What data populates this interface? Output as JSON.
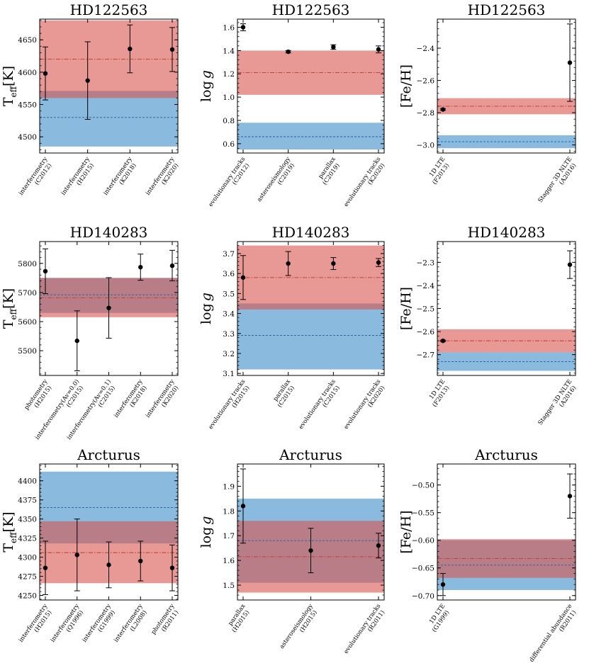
{
  "chart_data": [
    {
      "type": "errorbar",
      "title": "HD122563",
      "ylabel_main": "T",
      "ylabel_sub": "eff",
      "ylabel_unit": "[K]",
      "ylim": [
        4475,
        4682
      ],
      "yticks": [
        4500,
        4550,
        4600,
        4650
      ],
      "categories": [
        [
          "interferometry",
          "(C2012)"
        ],
        [
          "interferometry",
          "(H2015)"
        ],
        [
          "interferometry",
          "(K2018)"
        ],
        [
          "interferometry",
          "(K2020)"
        ]
      ],
      "points": [
        {
          "value": 4598,
          "lo": 4557,
          "hi": 4639
        },
        {
          "value": 4587,
          "lo": 4527,
          "hi": 4647
        },
        {
          "value": 4636,
          "lo": 4599,
          "hi": 4673
        },
        {
          "value": 4635,
          "lo": 4601,
          "hi": 4669
        }
      ],
      "red_band": {
        "center": 4620,
        "lo": 4560,
        "hi": 4680
      },
      "blue_band": {
        "center": 4530,
        "lo": 4485,
        "hi": 4571
      }
    },
    {
      "type": "errorbar",
      "title": "HD122563",
      "ylabel_main": "log",
      "ylabel_sub": "",
      "ylabel_unit": "g",
      "ylim": [
        0.52,
        1.67
      ],
      "yticks": [
        0.6,
        0.8,
        1.0,
        1.2,
        1.4,
        1.6
      ],
      "categories": [
        [
          "evolutionary tracks",
          "(C2012)"
        ],
        [
          "asteroseismology",
          "(C2019)"
        ],
        [
          "parallax",
          "(C2019)"
        ],
        [
          "evolutionary tracks",
          "(K2020)"
        ]
      ],
      "points": [
        {
          "value": 1.6,
          "lo": 1.57,
          "hi": 1.63
        },
        {
          "value": 1.39,
          "lo": 1.38,
          "hi": 1.4
        },
        {
          "value": 1.43,
          "lo": 1.41,
          "hi": 1.45
        },
        {
          "value": 1.41,
          "lo": 1.38,
          "hi": 1.44
        }
      ],
      "red_band": {
        "center": 1.21,
        "lo": 1.02,
        "hi": 1.4
      },
      "blue_band": {
        "center": 0.66,
        "lo": 0.55,
        "hi": 0.78
      }
    },
    {
      "type": "errorbar",
      "title": "HD122563",
      "ylabel_main": "[Fe/H]",
      "ylabel_sub": "",
      "ylabel_unit": "",
      "ylim": [
        -3.05,
        -2.22
      ],
      "yticks": [
        -3.0,
        -2.8,
        -2.6,
        -2.4
      ],
      "categories": [
        [
          "1D LTE",
          "(F2013)"
        ],
        [
          "Stagger 3D NLTE",
          "(A2016)"
        ]
      ],
      "points": [
        {
          "value": -2.78,
          "lo": -2.785,
          "hi": -2.775
        },
        {
          "value": -2.49,
          "lo": -2.73,
          "hi": -2.25
        }
      ],
      "red_band": {
        "center": -2.76,
        "lo": -2.81,
        "hi": -2.71
      },
      "blue_band": {
        "center": -2.98,
        "lo": -3.02,
        "hi": -2.94
      }
    },
    {
      "type": "errorbar",
      "title": "HD140283",
      "ylabel_main": "T",
      "ylabel_sub": "eff",
      "ylabel_unit": "[K]",
      "ylim": [
        5415,
        5875
      ],
      "yticks": [
        5500,
        5600,
        5700,
        5800
      ],
      "categories": [
        [
          "photometry",
          "(H2015)"
        ],
        [
          "interferometry(Av=0.0)",
          "(C2015)"
        ],
        [
          "interferometry(Av=0.1)",
          "(C2015)"
        ],
        [
          "interferometry",
          "(K2018)"
        ],
        [
          "interferometry",
          "(K2020)"
        ]
      ],
      "points": [
        {
          "value": 5773,
          "lo": 5696,
          "hi": 5850
        },
        {
          "value": 5534,
          "lo": 5431,
          "hi": 5637
        },
        {
          "value": 5647,
          "lo": 5543,
          "hi": 5751
        },
        {
          "value": 5787,
          "lo": 5742,
          "hi": 5832
        },
        {
          "value": 5792,
          "lo": 5740,
          "hi": 5845
        }
      ],
      "red_band": {
        "center": 5682,
        "lo": 5615,
        "hi": 5750
      },
      "blue_band": {
        "center": 5692,
        "lo": 5630,
        "hi": 5750
      }
    },
    {
      "type": "errorbar",
      "title": "HD140283",
      "ylabel_main": "log",
      "ylabel_sub": "",
      "ylabel_unit": "g",
      "ylim": [
        3.09,
        3.76
      ],
      "yticks": [
        3.1,
        3.2,
        3.3,
        3.4,
        3.5,
        3.6,
        3.7
      ],
      "categories": [
        [
          "evolutionary tracks",
          "(H2015)"
        ],
        [
          "parallax",
          "(C2015)"
        ],
        [
          "evolutionary tracks",
          "(C2015)"
        ],
        [
          "evolutionary tracks",
          "(K2020)"
        ]
      ],
      "points": [
        {
          "value": 3.58,
          "lo": 3.47,
          "hi": 3.69
        },
        {
          "value": 3.65,
          "lo": 3.59,
          "hi": 3.71
        },
        {
          "value": 3.65,
          "lo": 3.62,
          "hi": 3.68
        },
        {
          "value": 3.655,
          "lo": 3.635,
          "hi": 3.675
        }
      ],
      "red_band": {
        "center": 3.58,
        "lo": 3.42,
        "hi": 3.74
      },
      "blue_band": {
        "center": 3.29,
        "lo": 3.12,
        "hi": 3.45
      }
    },
    {
      "type": "errorbar",
      "title": "HD140283",
      "ylabel_main": "[Fe/H]",
      "ylabel_sub": "",
      "ylabel_unit": "",
      "ylim": [
        -2.79,
        -2.21
      ],
      "yticks": [
        -2.7,
        -2.6,
        -2.5,
        -2.4,
        -2.3
      ],
      "categories": [
        [
          "1D LTE",
          "(F2013)"
        ],
        [
          "Stagger 3D NLTE",
          "(A2016)"
        ]
      ],
      "points": [
        {
          "value": -2.64,
          "lo": -2.643,
          "hi": -2.637
        },
        {
          "value": -2.31,
          "lo": -2.37,
          "hi": -2.25
        }
      ],
      "red_band": {
        "center": -2.64,
        "lo": -2.69,
        "hi": -2.59
      },
      "blue_band": {
        "center": -2.73,
        "lo": -2.77,
        "hi": -2.69
      }
    },
    {
      "type": "errorbar",
      "title": "Arcturus",
      "ylabel_main": "T",
      "ylabel_sub": "eff",
      "ylabel_unit": "[K]",
      "ylim": [
        4244,
        4422
      ],
      "yticks": [
        4250,
        4275,
        4300,
        4325,
        4350,
        4375,
        4400
      ],
      "categories": [
        [
          "interferometry",
          "(H2015)"
        ],
        [
          "interferometry",
          "(Q1996)"
        ],
        [
          "interferometry",
          "(G1999)"
        ],
        [
          "interferometry",
          "(L2008)"
        ],
        [
          "photometry",
          "(R2011)"
        ]
      ],
      "points": [
        {
          "value": 4286,
          "lo": 4251,
          "hi": 4321
        },
        {
          "value": 4303,
          "lo": 4256,
          "hi": 4350
        },
        {
          "value": 4290,
          "lo": 4260,
          "hi": 4320
        },
        {
          "value": 4295,
          "lo": 4269,
          "hi": 4321
        },
        {
          "value": 4286,
          "lo": 4256,
          "hi": 4316
        }
      ],
      "red_band": {
        "center": 4306,
        "lo": 4266,
        "hi": 4347
      },
      "blue_band": {
        "center": 4365,
        "lo": 4318,
        "hi": 4412
      }
    },
    {
      "type": "errorbar",
      "title": "Arcturus",
      "ylabel_main": "log",
      "ylabel_sub": "",
      "ylabel_unit": "g",
      "ylim": [
        1.44,
        1.99
      ],
      "yticks": [
        1.5,
        1.6,
        1.7,
        1.8,
        1.9
      ],
      "categories": [
        [
          "parallax",
          "(H2015)"
        ],
        [
          "asteroseismology",
          "(H2015)"
        ],
        [
          "evolutionary tracks",
          "(R2011)"
        ]
      ],
      "points": [
        {
          "value": 1.82,
          "lo": 1.67,
          "hi": 1.97
        },
        {
          "value": 1.64,
          "lo": 1.55,
          "hi": 1.73
        },
        {
          "value": 1.66,
          "lo": 1.61,
          "hi": 1.71
        }
      ],
      "red_band": {
        "center": 1.615,
        "lo": 1.47,
        "hi": 1.76
      },
      "blue_band": {
        "center": 1.68,
        "lo": 1.51,
        "hi": 1.85
      }
    },
    {
      "type": "errorbar",
      "title": "Arcturus",
      "ylabel_main": "[Fe/H]",
      "ylabel_sub": "",
      "ylabel_unit": "",
      "ylim": [
        -0.708,
        -0.462
      ],
      "yticks": [
        -0.7,
        -0.65,
        -0.6,
        -0.55,
        -0.5
      ],
      "categories": [
        [
          "1D LTE",
          "(G1999)"
        ],
        [
          "differential abundance",
          "(R2011)"
        ]
      ],
      "points": [
        {
          "value": -0.68,
          "lo": -0.7,
          "hi": -0.66
        },
        {
          "value": -0.52,
          "lo": -0.56,
          "hi": -0.48
        }
      ],
      "red_band": {
        "center": -0.633,
        "lo": -0.668,
        "hi": -0.598
      },
      "blue_band": {
        "center": -0.645,
        "lo": -0.69,
        "hi": -0.6
      }
    }
  ],
  "colors": {
    "red_fill": "#d9534f",
    "blue_fill": "#3c8dc8",
    "red_line": "#c0392b",
    "blue_line": "#1f5f9f",
    "point": "#000000"
  }
}
